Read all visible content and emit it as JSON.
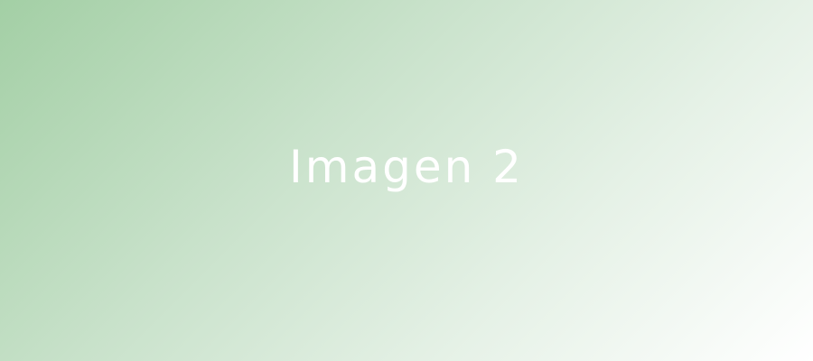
{
  "slide": {
    "caption": "Imagen 2",
    "colors": {
      "gradient_start": "#a3cfa5",
      "gradient_end": "#ffffff",
      "caption_text": "#ffffff"
    }
  }
}
